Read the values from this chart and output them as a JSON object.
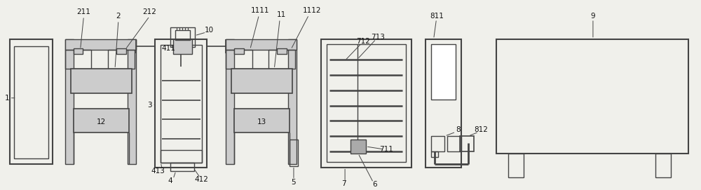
{
  "bg_color": "#f0f0eb",
  "line_color": "#444444",
  "fill_light": "#cccccc",
  "fill_dark": "#aaaaaa",
  "label_color": "#111111",
  "figsize": [
    10.0,
    2.71
  ],
  "dpi": 100,
  "label_fs": 7.5
}
